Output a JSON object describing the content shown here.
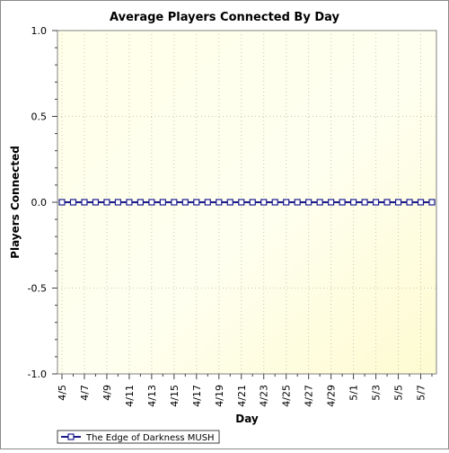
{
  "chart_data": {
    "type": "line",
    "title": "Average Players Connected By Day",
    "xlabel": "Day",
    "ylabel": "Players Connected",
    "ylim": [
      -1.0,
      1.0
    ],
    "yticks": [
      "1.0",
      "0.5",
      "0.0",
      "-0.5",
      "-1.0"
    ],
    "ytick_values": [
      1.0,
      0.5,
      0.0,
      -0.5,
      -1.0
    ],
    "x_labeled_ticks": [
      "4/5",
      "4/7",
      "4/9",
      "4/11",
      "4/13",
      "4/15",
      "4/17",
      "4/19",
      "4/21",
      "4/23",
      "4/25",
      "4/27",
      "4/29",
      "5/1",
      "5/3",
      "5/5",
      "5/7"
    ],
    "x": [
      "4/5",
      "4/6",
      "4/7",
      "4/8",
      "4/9",
      "4/10",
      "4/11",
      "4/12",
      "4/13",
      "4/14",
      "4/15",
      "4/16",
      "4/17",
      "4/18",
      "4/19",
      "4/20",
      "4/21",
      "4/22",
      "4/23",
      "4/24",
      "4/25",
      "4/26",
      "4/27",
      "4/28",
      "4/29",
      "4/30",
      "5/1",
      "5/2",
      "5/3",
      "5/4",
      "5/5",
      "5/6",
      "5/7",
      "5/8"
    ],
    "series": [
      {
        "name": "The Edge of Darkness MUSH",
        "color": "#1a1a8c",
        "values": [
          0,
          0,
          0,
          0,
          0,
          0,
          0,
          0,
          0,
          0,
          0,
          0,
          0,
          0,
          0,
          0,
          0,
          0,
          0,
          0,
          0,
          0,
          0,
          0,
          0,
          0,
          0,
          0,
          0,
          0,
          0,
          0,
          0,
          0
        ]
      }
    ],
    "grid": true,
    "legend_position": "bottom-left",
    "plot_background": "#ffffe0"
  }
}
